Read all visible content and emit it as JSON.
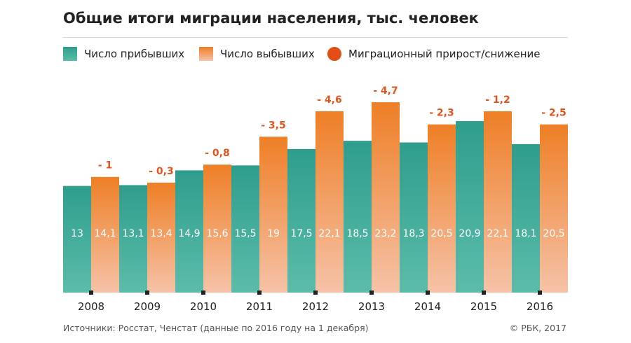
{
  "title": "Общие итоги миграции населения, тыс. человек",
  "legend": {
    "arrivals": "Число прибывших",
    "departures": "Число выбывших",
    "net": "Миграционный прирост/снижение"
  },
  "chart_data": {
    "type": "bar",
    "title": "Общие итоги миграции населения, тыс. человек",
    "categories": [
      "2008",
      "2009",
      "2010",
      "2011",
      "2012",
      "2013",
      "2014",
      "2015",
      "2016"
    ],
    "series": [
      {
        "name": "Число прибывших",
        "values": [
          13,
          13.1,
          14.9,
          15.5,
          17.5,
          18.5,
          18.3,
          20.9,
          18.1
        ],
        "labels": [
          "13",
          "13,1",
          "14,9",
          "15,5",
          "17,5",
          "18,5",
          "18,3",
          "20,9",
          "18,1"
        ]
      },
      {
        "name": "Число выбывших",
        "values": [
          14.1,
          13.4,
          15.6,
          19,
          22.1,
          23.2,
          20.5,
          22.1,
          20.5
        ],
        "labels": [
          "14,1",
          "13,4",
          "15,6",
          "19",
          "22,1",
          "23,2",
          "20,5",
          "22,1",
          "20,5"
        ]
      }
    ],
    "net": {
      "name": "Миграционный прирост/снижение",
      "values": [
        -1,
        -0.3,
        -0.8,
        -3.5,
        -4.6,
        -4.7,
        -2.3,
        -1.2,
        -2.5
      ],
      "labels": [
        "- 1",
        "- 0,3",
        "- 0,8",
        "- 3,5",
        "- 4,6",
        "- 4,7",
        "- 2,3",
        "- 1,2",
        "- 2,5"
      ]
    },
    "xlabel": "",
    "ylabel": "",
    "ylim": [
      0,
      25
    ],
    "grid": false,
    "legend_position": "top"
  },
  "colors": {
    "arrivals_top": "#2f9d8d",
    "arrivals_bottom": "#5bbda9",
    "departures_top": "#ee7f26",
    "departures_bottom": "#f6c2a8",
    "net_label": "#e0551b",
    "bar_value_text": "#ffffff",
    "axis": "#222222"
  },
  "footer": {
    "source": "Источники: Росстат, Ченстат (данные по 2016 году на 1 декабря)",
    "copyright": "© РБК, 2017"
  }
}
